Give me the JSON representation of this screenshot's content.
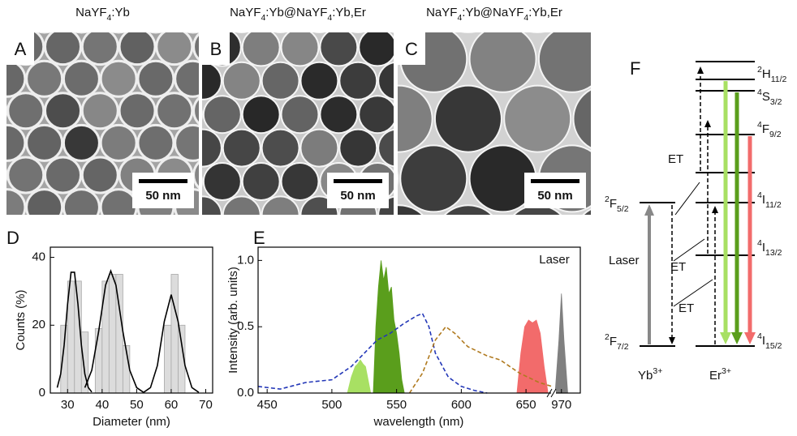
{
  "panels": [
    {
      "label": "A",
      "title": [
        "NaYF",
        {
          "sub": "4"
        },
        ":Yb"
      ],
      "scale_bar": "50 nm"
    },
    {
      "label": "B",
      "title": [
        "NaYF",
        {
          "sub": "4"
        },
        ":Yb@NaYF",
        {
          "sub": "4"
        },
        ":Yb,Er"
      ],
      "scale_bar": "50 nm"
    },
    {
      "label": "C",
      "title": [
        "NaYF",
        {
          "sub": "4"
        },
        ":Yb@NaYF",
        {
          "sub": "4"
        },
        ":Yb,Er"
      ],
      "scale_bar": "50 nm"
    }
  ],
  "chart_data": [
    {
      "type": "histogram",
      "panel_label": "D",
      "xlabel": "Diameter (nm)",
      "ylabel": "Counts (%)",
      "bins": [
        28,
        30,
        32,
        34,
        36,
        38,
        40,
        42,
        44,
        46,
        48,
        50,
        52,
        54,
        56,
        58,
        60,
        62,
        64
      ],
      "values": [
        20,
        33,
        33,
        18,
        0,
        19,
        33,
        35,
        35,
        14,
        0,
        0,
        0,
        0,
        0,
        20,
        35,
        20
      ],
      "color": "#dcdcdc",
      "xlim": [
        25,
        72
      ],
      "ylim": [
        0,
        43
      ],
      "xticks": [
        30,
        40,
        50,
        60,
        70
      ],
      "yticks": [
        0,
        20,
        40
      ],
      "fits": [
        {
          "color": "#000000",
          "x": [
            27,
            28,
            29,
            30,
            31,
            32,
            33,
            34,
            35,
            36,
            37
          ],
          "values": [
            1.6,
            5.6,
            14.1,
            26.2,
            35.6,
            35.6,
            26.2,
            14.1,
            5.6,
            1.6,
            0.3
          ]
        },
        {
          "color": "#000000",
          "x": [
            35,
            37,
            39,
            41,
            42.5,
            44,
            46,
            48,
            50,
            52
          ],
          "values": [
            1.6,
            6.7,
            18.2,
            31.8,
            36,
            31.8,
            18.2,
            6.7,
            1.6,
            0.2
          ]
        },
        {
          "color": "#000000",
          "x": [
            52,
            54,
            56,
            58,
            60,
            62,
            64,
            66,
            68
          ],
          "values": [
            0.2,
            1.6,
            8.1,
            21.1,
            29,
            21.1,
            8.1,
            1.6,
            0.2
          ]
        }
      ]
    },
    {
      "type": "area",
      "panel_label": "E",
      "xlabel": "wavelength (nm)",
      "ylabel": "Intensity (arb. units)",
      "annotation": "Laser",
      "segments": [
        {
          "xlim": [
            443,
            670
          ],
          "xticks": [
            450,
            500,
            550,
            600,
            650
          ]
        },
        {
          "xlim": [
            965,
            985
          ],
          "xticks": [
            970
          ]
        }
      ],
      "ylim": [
        0,
        1.1
      ],
      "yticks": [
        {
          "value": 0,
          "label": "0.0"
        },
        {
          "value": 0.5,
          "label": "0.5"
        },
        {
          "value": 1,
          "label": "1.0"
        }
      ],
      "series": [
        {
          "style": "fill",
          "color": "#a8e063",
          "x": [
            512,
            515,
            518,
            520,
            522,
            524,
            526,
            528,
            530
          ],
          "values": [
            0,
            0.12,
            0.2,
            0.22,
            0.25,
            0.22,
            0.2,
            0.1,
            0
          ]
        },
        {
          "style": "fill",
          "color": "#5a9e1c",
          "x": [
            532,
            534,
            536,
            538,
            540,
            542,
            544,
            546,
            548,
            550,
            552,
            554,
            556
          ],
          "values": [
            0,
            0.5,
            0.8,
            1.0,
            0.85,
            0.95,
            0.75,
            0.8,
            0.55,
            0.45,
            0.3,
            0.1,
            0
          ]
        },
        {
          "style": "fill",
          "color": "#f26b6b",
          "x": [
            643,
            646,
            649,
            652,
            655,
            658,
            661,
            664,
            667
          ],
          "values": [
            0,
            0.3,
            0.5,
            0.55,
            0.53,
            0.55,
            0.45,
            0.2,
            0
          ]
        },
        {
          "style": "fill",
          "color": "#808080",
          "x": [
            965,
            968,
            970,
            972,
            975
          ],
          "values": [
            0,
            0.4,
            0.75,
            0.4,
            0
          ]
        },
        {
          "style": "dashed",
          "color": "#2438b8",
          "x": [
            443,
            460,
            480,
            500,
            515,
            525,
            535,
            545,
            555,
            565,
            570,
            575,
            580,
            590,
            600,
            610,
            620
          ],
          "values": [
            0.05,
            0.03,
            0.08,
            0.1,
            0.2,
            0.3,
            0.4,
            0.45,
            0.52,
            0.58,
            0.6,
            0.5,
            0.3,
            0.12,
            0.05,
            0.02,
            0
          ]
        },
        {
          "style": "dashed",
          "color": "#b07a1f",
          "x": [
            560,
            570,
            580,
            588,
            595,
            605,
            620,
            630,
            645,
            660,
            670
          ],
          "values": [
            0,
            0.15,
            0.4,
            0.5,
            0.45,
            0.35,
            0.28,
            0.25,
            0.15,
            0.08,
            0.05
          ]
        }
      ]
    }
  ],
  "diagram": {
    "label": "F",
    "yb_levels": [
      [
        {
          "sup": "2"
        },
        "F",
        {
          "sub": "5/2"
        }
      ],
      [
        {
          "sup": "2"
        },
        "F",
        {
          "sub": "7/2"
        }
      ]
    ],
    "er_levels": [
      [
        {
          "sup": "2"
        },
        "H",
        {
          "sub": "11/2"
        }
      ],
      [
        {
          "sup": "4"
        },
        "S",
        {
          "sub": "3/2"
        }
      ],
      [
        {
          "sup": "4"
        },
        "F",
        {
          "sub": "9/2"
        }
      ],
      [
        {
          "sup": "4"
        },
        "I",
        {
          "sub": "11/2"
        }
      ],
      [
        {
          "sup": "4"
        },
        "I",
        {
          "sub": "13/2"
        }
      ],
      [
        {
          "sup": "4"
        },
        "I",
        {
          "sub": "15/2"
        }
      ]
    ],
    "transfer_labels": [
      "ET",
      "ET",
      "ET"
    ],
    "pump_label": "Laser",
    "ions": [
      [
        "Yb",
        {
          "sup": "3+"
        }
      ],
      [
        "Er",
        {
          "sup": "3+"
        }
      ]
    ]
  }
}
